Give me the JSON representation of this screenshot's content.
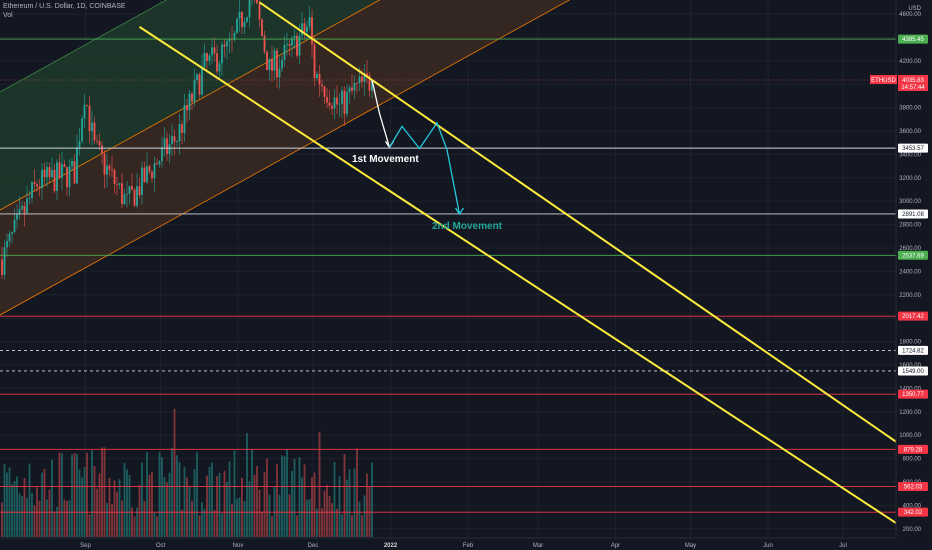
{
  "header": {
    "symbol_line": "Ethereum / U.S. Dollar, 1D, COINBASE",
    "volume_label": "Vol"
  },
  "price_axis": {
    "currency": "USD",
    "ticks": [
      4600,
      4400,
      4200,
      4000,
      3800,
      3600,
      3400,
      3200,
      3000,
      2800,
      2600,
      2400,
      2200,
      2000,
      1800,
      1600,
      1400,
      1200,
      1000,
      800,
      600,
      400,
      200
    ],
    "tick_labels": [
      "4600.00",
      "4400.00",
      "4200.00",
      "4000.00",
      "3800.00",
      "3600.00",
      "3400.00",
      "3200.00",
      "3000.00",
      "2800.00",
      "2600.00",
      "2400.00",
      "2200.00",
      "2000.00",
      "1800.00",
      "1600.00",
      "1400.00",
      "1200.00",
      "1000.00",
      "800.00",
      "600.00",
      "400.00",
      "200.00"
    ]
  },
  "time_axis": [
    "Sep",
    "Oct",
    "Nov",
    "Dec",
    "2022",
    "Feb",
    "Mar",
    "Apr",
    "May",
    "Jun",
    "Jul"
  ],
  "current_price": {
    "symbol": "ETHUSD",
    "price": "4035.83",
    "countdown": "14:57:44"
  },
  "levels": [
    {
      "price": 4385.45,
      "label": "4385.45",
      "color": "#4caf50",
      "style": "solid",
      "badge_bg": "#4caf50",
      "badge_fg": "#ffffff"
    },
    {
      "price": 3453.57,
      "label": "3453.57",
      "color": "#d1d4dc",
      "style": "solid",
      "badge_bg": "#ffffff",
      "badge_fg": "#131722"
    },
    {
      "price": 2891.08,
      "label": "2891.08",
      "color": "#d1d4dc",
      "style": "solid",
      "badge_bg": "#ffffff",
      "badge_fg": "#131722"
    },
    {
      "price": 2537.69,
      "label": "2537.69",
      "color": "#4caf50",
      "style": "solid",
      "badge_bg": "#4caf50",
      "badge_fg": "#ffffff"
    },
    {
      "price": 2017.42,
      "label": "2017.42",
      "color": "#f23645",
      "style": "solid",
      "badge_bg": "#f23645",
      "badge_fg": "#ffffff"
    },
    {
      "price": 1724.82,
      "label": "1724.82",
      "color": "#d1d4dc",
      "style": "dashed",
      "badge_bg": "#ffffff",
      "badge_fg": "#131722"
    },
    {
      "price": 1549.0,
      "label": "1549.00",
      "color": "#d1d4dc",
      "style": "dashed",
      "badge_bg": "#ffffff",
      "badge_fg": "#131722"
    },
    {
      "price": 1350.77,
      "label": "1350.77",
      "color": "#f23645",
      "style": "solid",
      "badge_bg": "#f23645",
      "badge_fg": "#ffffff"
    },
    {
      "price": 879.28,
      "label": "879.28",
      "color": "#f23645",
      "style": "solid",
      "badge_bg": "#f23645",
      "badge_fg": "#ffffff"
    },
    {
      "price": 562.03,
      "label": "562.03",
      "color": "#f23645",
      "style": "solid",
      "badge_bg": "#f23645",
      "badge_fg": "#ffffff"
    },
    {
      "price": 342.02,
      "label": "342.02",
      "color": "#f23645",
      "style": "solid",
      "badge_bg": "#f23645",
      "badge_fg": "#ffffff"
    }
  ],
  "annotations": {
    "first": {
      "text": "1st Movement",
      "color": "#ffffff"
    },
    "second": {
      "text": "2nd Movement",
      "color": "#26a69a"
    }
  },
  "colors": {
    "background": "#131722",
    "up": "#26a69a",
    "down": "#ef5350",
    "channel_line": "#ffeb3b",
    "up_channel_upper_fill": "#1f3a2c",
    "up_channel_lower_fill": "#3b2a22",
    "up_channel_border": "#f57c00",
    "projection_up": "#26c6da",
    "projection_down": "#ffffff",
    "grid": "#1e222d"
  },
  "chart_data": {
    "type": "candlestick",
    "title": "Ethereum / U.S. Dollar, 1D, COINBASE",
    "x_range": [
      "2021-08-01",
      "2022-07-31"
    ],
    "y_range": [
      30,
      4700
    ],
    "grid": true,
    "series": [
      {
        "name": "ETHUSD daily candles (approx.)",
        "x": [
          "2021-08-01",
          "2021-08-15",
          "2021-08-30",
          "2021-09-03",
          "2021-09-07",
          "2021-09-20",
          "2021-10-01",
          "2021-10-10",
          "2021-10-21",
          "2021-11-01",
          "2021-11-09",
          "2021-11-16",
          "2021-11-25",
          "2021-12-02",
          "2021-12-04",
          "2021-12-14",
          "2021-12-20",
          "2021-12-27"
        ],
        "y": [
          2500,
          3150,
          3250,
          3940,
          3450,
          2980,
          3310,
          3550,
          4150,
          4320,
          4810,
          4120,
          4300,
          4520,
          4100,
          3800,
          3950,
          4036
        ]
      }
    ],
    "channels": [
      {
        "name": "descending channel upper",
        "from": [
          "2021-11-12",
          4700
        ],
        "to": [
          "2022-07-31",
          850
        ]
      },
      {
        "name": "descending channel lower",
        "from": [
          "2021-09-25",
          4490
        ],
        "to": [
          "2022-07-31",
          160
        ]
      }
    ],
    "projections": [
      {
        "name": "1st Movement",
        "path": [
          [
            "2021-12-27",
            4036
          ],
          [
            "2021-12-30",
            3750
          ],
          [
            "2022-01-03",
            3460
          ]
        ]
      },
      {
        "name": "2nd Movement",
        "path": [
          [
            "2022-01-03",
            3460
          ],
          [
            "2022-01-08",
            3640
          ],
          [
            "2022-01-15",
            3450
          ],
          [
            "2022-01-22",
            3670
          ],
          [
            "2022-01-26",
            3440
          ],
          [
            "2022-01-31",
            2891
          ]
        ]
      }
    ]
  }
}
